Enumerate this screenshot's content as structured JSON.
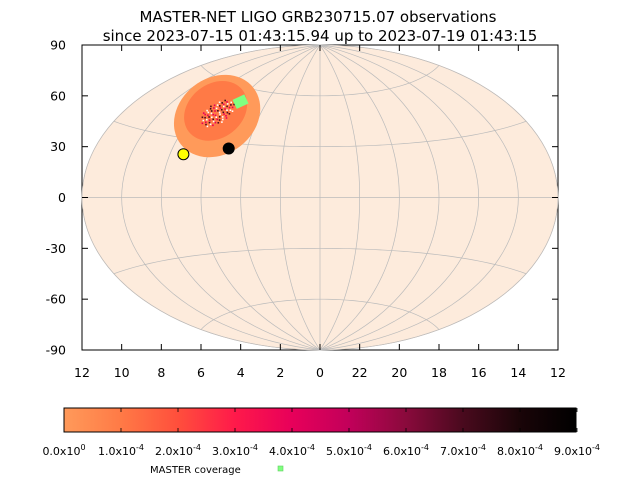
{
  "chart_data": {
    "type": "scatter",
    "projection": "aitoff",
    "title_line1": "MASTER-NET LIGO GRB230715.07 observations",
    "title_line2": "since 2023-07-15 01:43:15.94 up to 2023-07-19 01:43:15",
    "ylim": [
      -90,
      90
    ],
    "y_ticks": [
      "90",
      "60",
      "30",
      "0",
      "-30",
      "-60",
      "-90"
    ],
    "x_ticks": [
      "12",
      "10",
      "8",
      "6",
      "4",
      "2",
      "0",
      "22",
      "20",
      "18",
      "16",
      "14",
      "12"
    ],
    "x_unit": "hours",
    "grid": true,
    "colorbar": {
      "ticks": [
        "0.0x10^0",
        "1.0x10^-4",
        "2.0x10^-4",
        "3.0x10^-4",
        "4.0x10^-4",
        "5.0x10^-4",
        "6.0x10^-4",
        "7.0x10^-4",
        "8.0x10^-4",
        "9.0x10^-4"
      ],
      "min": 0,
      "max": 0.0009,
      "colors": [
        "#ff9a5a",
        "#ff7a46",
        "#ff4f3c",
        "#ff1a4a",
        "#e8005a",
        "#c2005a",
        "#8a0a3c",
        "#4a0a1e",
        "#1a0508",
        "#000000"
      ]
    },
    "legend": {
      "label": "MASTER coverage",
      "color": "#80ff80"
    },
    "markers": [
      {
        "name": "yellow-marker",
        "ra_h": 7.3,
        "dec": 22,
        "color": "#ffff00"
      },
      {
        "name": "black-marker",
        "ra_h": 5.0,
        "dec": 27,
        "color": "#000000"
      }
    ],
    "coverage_patch": {
      "ra_h": 5.8,
      "dec": 52
    },
    "probability_region": {
      "center_ra_h": 6.8,
      "center_dec": 45
    },
    "colors": {
      "sky_fill": "#fdebdc",
      "sky_grid": "#bbbbbb",
      "region_low": "#ff9a5a",
      "region_mid": "#ff7a46",
      "region_high": "#e8005a"
    }
  }
}
